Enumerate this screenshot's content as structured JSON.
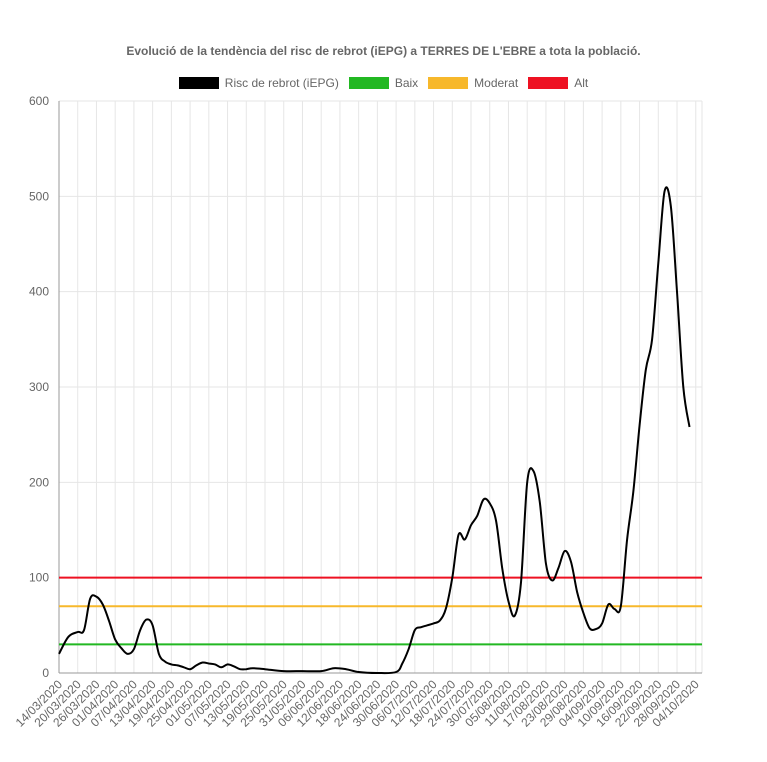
{
  "chart_data": {
    "type": "line",
    "title": "Evolució de la tendència del risc de rebrot (iEPG) a TERRES DE L'EBRE a tota la població.",
    "ylim": [
      0,
      600
    ],
    "yticks": [
      0,
      100,
      200,
      300,
      400,
      500,
      600
    ],
    "grid": true,
    "legend_position": "top",
    "x_start": "14/03/2020",
    "x_end": "06/10/2020",
    "x_tick_labels": [
      "14/03/2020",
      "20/03/2020",
      "26/03/2020",
      "01/04/2020",
      "07/04/2020",
      "13/04/2020",
      "19/04/2020",
      "25/04/2020",
      "01/05/2020",
      "07/05/2020",
      "13/05/2020",
      "19/05/2020",
      "25/05/2020",
      "31/05/2020",
      "06/06/2020",
      "12/06/2020",
      "18/06/2020",
      "24/06/2020",
      "30/06/2020",
      "06/07/2020",
      "12/07/2020",
      "18/07/2020",
      "24/07/2020",
      "30/07/2020",
      "05/08/2020",
      "11/08/2020",
      "17/08/2020",
      "23/08/2020",
      "29/08/2020",
      "04/09/2020",
      "10/09/2020",
      "16/09/2020",
      "22/09/2020",
      "28/09/2020",
      "04/10/2020"
    ],
    "series": [
      {
        "name": "Risc de rebrot (iEPG)",
        "color": "#000000",
        "points": [
          [
            "14/03/2020",
            20
          ],
          [
            "17/03/2020",
            38
          ],
          [
            "20/03/2020",
            43
          ],
          [
            "22/03/2020",
            45
          ],
          [
            "24/03/2020",
            78
          ],
          [
            "26/03/2020",
            80
          ],
          [
            "28/03/2020",
            72
          ],
          [
            "30/03/2020",
            55
          ],
          [
            "01/04/2020",
            35
          ],
          [
            "03/04/2020",
            26
          ],
          [
            "05/04/2020",
            20
          ],
          [
            "07/04/2020",
            25
          ],
          [
            "09/04/2020",
            45
          ],
          [
            "11/04/2020",
            56
          ],
          [
            "13/04/2020",
            50
          ],
          [
            "15/04/2020",
            20
          ],
          [
            "17/04/2020",
            12
          ],
          [
            "19/04/2020",
            9
          ],
          [
            "21/04/2020",
            8
          ],
          [
            "23/04/2020",
            6
          ],
          [
            "25/04/2020",
            4
          ],
          [
            "27/04/2020",
            8
          ],
          [
            "29/04/2020",
            11
          ],
          [
            "01/05/2020",
            10
          ],
          [
            "03/05/2020",
            9
          ],
          [
            "05/05/2020",
            6
          ],
          [
            "07/05/2020",
            9
          ],
          [
            "09/05/2020",
            7
          ],
          [
            "11/05/2020",
            4
          ],
          [
            "13/05/2020",
            4
          ],
          [
            "15/05/2020",
            5
          ],
          [
            "19/05/2020",
            4
          ],
          [
            "25/05/2020",
            2
          ],
          [
            "31/05/2020",
            2
          ],
          [
            "06/06/2020",
            2
          ],
          [
            "10/06/2020",
            5
          ],
          [
            "14/06/2020",
            4
          ],
          [
            "18/06/2020",
            1
          ],
          [
            "24/06/2020",
            0
          ],
          [
            "30/06/2020",
            1
          ],
          [
            "02/07/2020",
            10
          ],
          [
            "04/07/2020",
            25
          ],
          [
            "06/07/2020",
            45
          ],
          [
            "08/07/2020",
            48
          ],
          [
            "10/07/2020",
            50
          ],
          [
            "12/07/2020",
            52
          ],
          [
            "14/07/2020",
            55
          ],
          [
            "16/07/2020",
            68
          ],
          [
            "18/07/2020",
            100
          ],
          [
            "20/07/2020",
            145
          ],
          [
            "22/07/2020",
            140
          ],
          [
            "24/07/2020",
            155
          ],
          [
            "26/07/2020",
            165
          ],
          [
            "28/07/2020",
            182
          ],
          [
            "30/07/2020",
            178
          ],
          [
            "01/08/2020",
            160
          ],
          [
            "03/08/2020",
            110
          ],
          [
            "05/08/2020",
            75
          ],
          [
            "07/08/2020",
            60
          ],
          [
            "09/08/2020",
            95
          ],
          [
            "11/08/2020",
            200
          ],
          [
            "13/08/2020",
            212
          ],
          [
            "15/08/2020",
            180
          ],
          [
            "17/08/2020",
            115
          ],
          [
            "19/08/2020",
            97
          ],
          [
            "21/08/2020",
            110
          ],
          [
            "23/08/2020",
            128
          ],
          [
            "25/08/2020",
            117
          ],
          [
            "27/08/2020",
            85
          ],
          [
            "29/08/2020",
            63
          ],
          [
            "31/08/2020",
            47
          ],
          [
            "02/09/2020",
            46
          ],
          [
            "04/09/2020",
            52
          ],
          [
            "06/09/2020",
            72
          ],
          [
            "08/09/2020",
            67
          ],
          [
            "10/09/2020",
            70
          ],
          [
            "12/09/2020",
            140
          ],
          [
            "14/09/2020",
            190
          ],
          [
            "16/09/2020",
            260
          ],
          [
            "18/09/2020",
            318
          ],
          [
            "20/09/2020",
            350
          ],
          [
            "22/09/2020",
            430
          ],
          [
            "24/09/2020",
            505
          ],
          [
            "26/09/2020",
            490
          ],
          [
            "28/09/2020",
            400
          ],
          [
            "30/09/2020",
            300
          ],
          [
            "02/10/2020",
            258
          ]
        ]
      },
      {
        "name": "Baix",
        "color": "#22b822",
        "value": 30
      },
      {
        "name": "Moderat",
        "color": "#f7b82b",
        "value": 70
      },
      {
        "name": "Alt",
        "color": "#ee1122",
        "value": 100
      }
    ]
  }
}
